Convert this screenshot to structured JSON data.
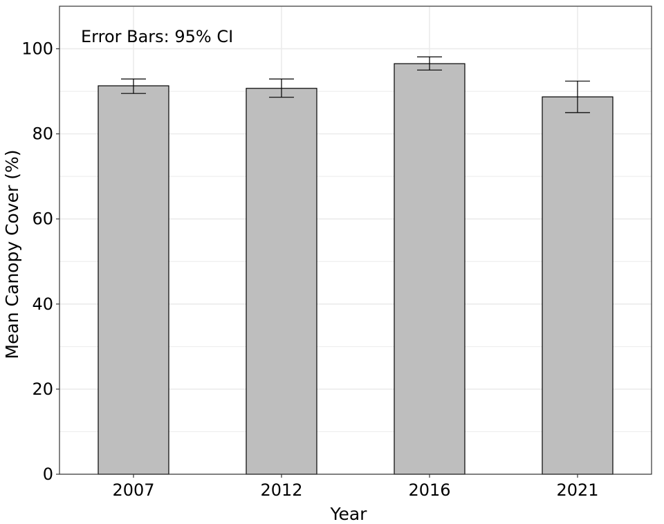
{
  "chart_data": {
    "type": "bar",
    "title": "",
    "xlabel": "Year",
    "ylabel": "Mean Canopy Cover (%)",
    "annotation": "Error Bars: 95% CI",
    "categories": [
      "2007",
      "2012",
      "2016",
      "2021"
    ],
    "values": [
      91.3,
      90.7,
      96.5,
      88.7
    ],
    "error_low": [
      89.5,
      88.6,
      95.0,
      85.0
    ],
    "error_high": [
      92.9,
      92.9,
      98.1,
      92.4
    ],
    "ylim": [
      0,
      110
    ],
    "yticks": [
      0,
      20,
      40,
      60,
      80,
      100
    ],
    "grid": true,
    "bar_color": "#bebebe",
    "grid_color": "#ebebeb"
  }
}
